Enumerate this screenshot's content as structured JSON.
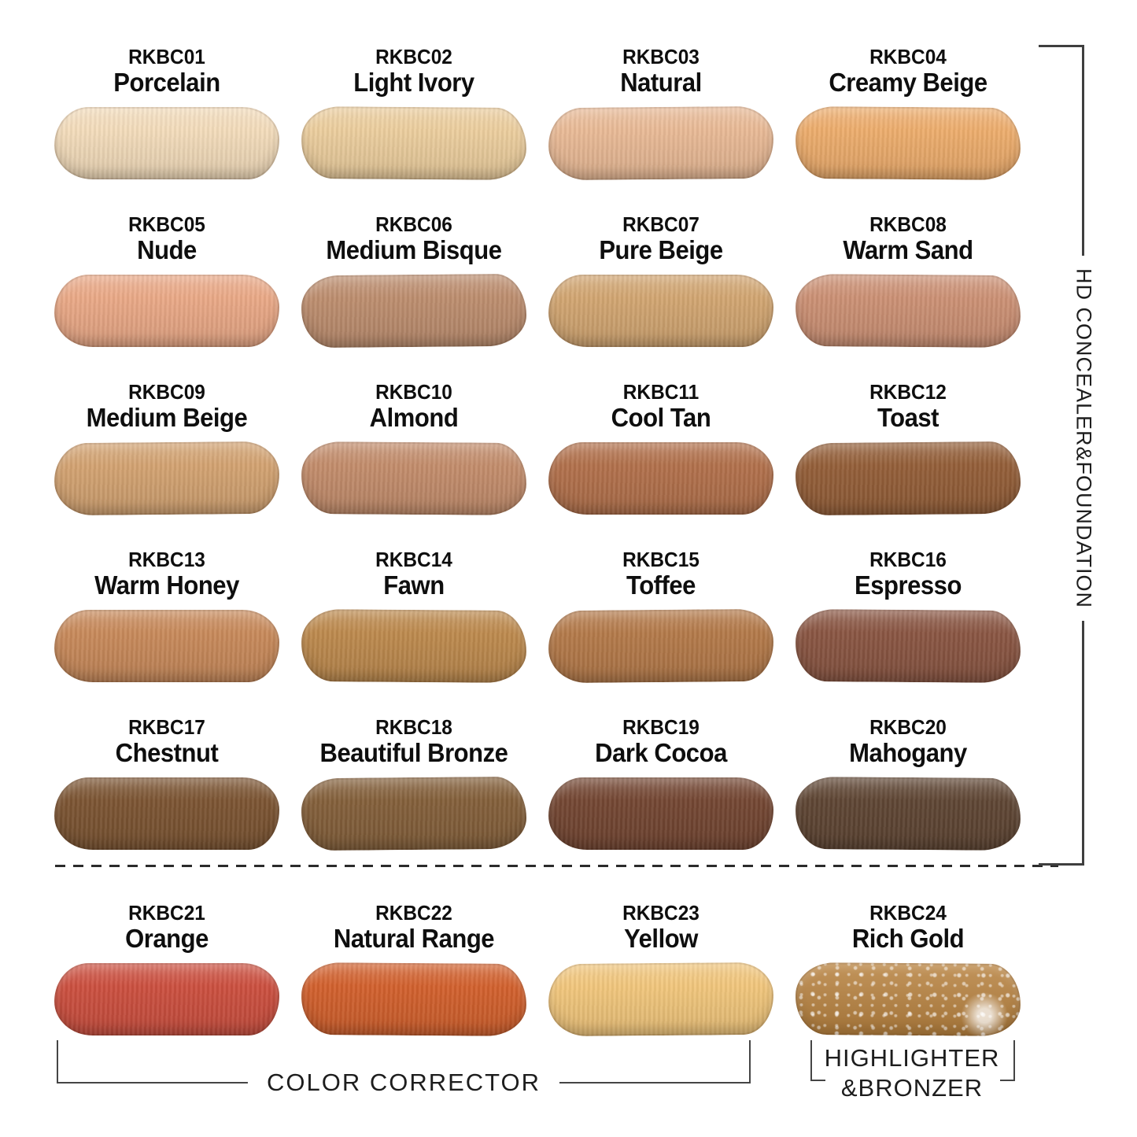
{
  "labels": {
    "right_bracket": "HD CONCEALER&FOUNDATION",
    "bottom_left_bracket": "COLOR CORRECTOR",
    "bottom_right_bracket_line1": "HIGHLIGHTER",
    "bottom_right_bracket_line2": "&BRONZER"
  },
  "style_colors": {
    "background": "#ffffff",
    "text": "#0e0e0e",
    "bracket_line": "#3f3f3f"
  },
  "shades": [
    {
      "code": "RKBC01",
      "name": "Porcelain",
      "color": "#f3dcbb",
      "group": "HD CONCEALER&FOUNDATION"
    },
    {
      "code": "RKBC02",
      "name": "Light Ivory",
      "color": "#ecce9e",
      "group": "HD CONCEALER&FOUNDATION"
    },
    {
      "code": "RKBC03",
      "name": "Natural",
      "color": "#e9ba96",
      "group": "HD CONCEALER&FOUNDATION"
    },
    {
      "code": "RKBC04",
      "name": "Creamy Beige",
      "color": "#edad6d",
      "group": "HD CONCEALER&FOUNDATION"
    },
    {
      "code": "RKBC05",
      "name": "Nude",
      "color": "#eaa987",
      "group": "HD CONCEALER&FOUNDATION"
    },
    {
      "code": "RKBC06",
      "name": "Medium Bisque",
      "color": "#bd8e6f",
      "group": "HD CONCEALER&FOUNDATION"
    },
    {
      "code": "RKBC07",
      "name": "Pure Beige",
      "color": "#d2a672",
      "group": "HD CONCEALER&FOUNDATION"
    },
    {
      "code": "RKBC08",
      "name": "Warm Sand",
      "color": "#cc9175",
      "group": "HD CONCEALER&FOUNDATION"
    },
    {
      "code": "RKBC09",
      "name": "Medium Beige",
      "color": "#d3a372",
      "group": "HD CONCEALER&FOUNDATION"
    },
    {
      "code": "RKBC10",
      "name": "Almond",
      "color": "#c38d6c",
      "group": "HD CONCEALER&FOUNDATION"
    },
    {
      "code": "RKBC11",
      "name": "Cool Tan",
      "color": "#b2714c",
      "group": "HD CONCEALER&FOUNDATION"
    },
    {
      "code": "RKBC12",
      "name": "Toast",
      "color": "#945f39",
      "group": "HD CONCEALER&FOUNDATION"
    },
    {
      "code": "RKBC13",
      "name": "Warm Honey",
      "color": "#c88a5b",
      "group": "HD CONCEALER&FOUNDATION"
    },
    {
      "code": "RKBC14",
      "name": "Fawn",
      "color": "#bd8a4e",
      "group": "HD CONCEALER&FOUNDATION"
    },
    {
      "code": "RKBC15",
      "name": "Toffee",
      "color": "#b47a4a",
      "group": "HD CONCEALER&FOUNDATION"
    },
    {
      "code": "RKBC16",
      "name": "Espresso",
      "color": "#8a5643",
      "group": "HD CONCEALER&FOUNDATION"
    },
    {
      "code": "RKBC17",
      "name": "Chestnut",
      "color": "#7c5533",
      "group": "HD CONCEALER&FOUNDATION"
    },
    {
      "code": "RKBC18",
      "name": "Beautiful Bronze",
      "color": "#84603b",
      "group": "HD CONCEALER&FOUNDATION"
    },
    {
      "code": "RKBC19",
      "name": "Dark Cocoa",
      "color": "#744733",
      "group": "HD CONCEALER&FOUNDATION"
    },
    {
      "code": "RKBC20",
      "name": "Mahogany",
      "color": "#5f4634",
      "group": "HD CONCEALER&FOUNDATION"
    },
    {
      "code": "RKBC21",
      "name": "Orange",
      "color": "#cc5040",
      "group": "COLOR CORRECTOR"
    },
    {
      "code": "RKBC22",
      "name": "Natural Range",
      "color": "#d2612e",
      "group": "COLOR CORRECTOR"
    },
    {
      "code": "RKBC23",
      "name": "Yellow",
      "color": "#f1c67c",
      "group": "COLOR CORRECTOR"
    },
    {
      "code": "RKBC24",
      "name": "Rich Gold",
      "color": "#b8823f",
      "sparkle": true,
      "group": "HIGHLIGHTER&BRONZER"
    }
  ]
}
